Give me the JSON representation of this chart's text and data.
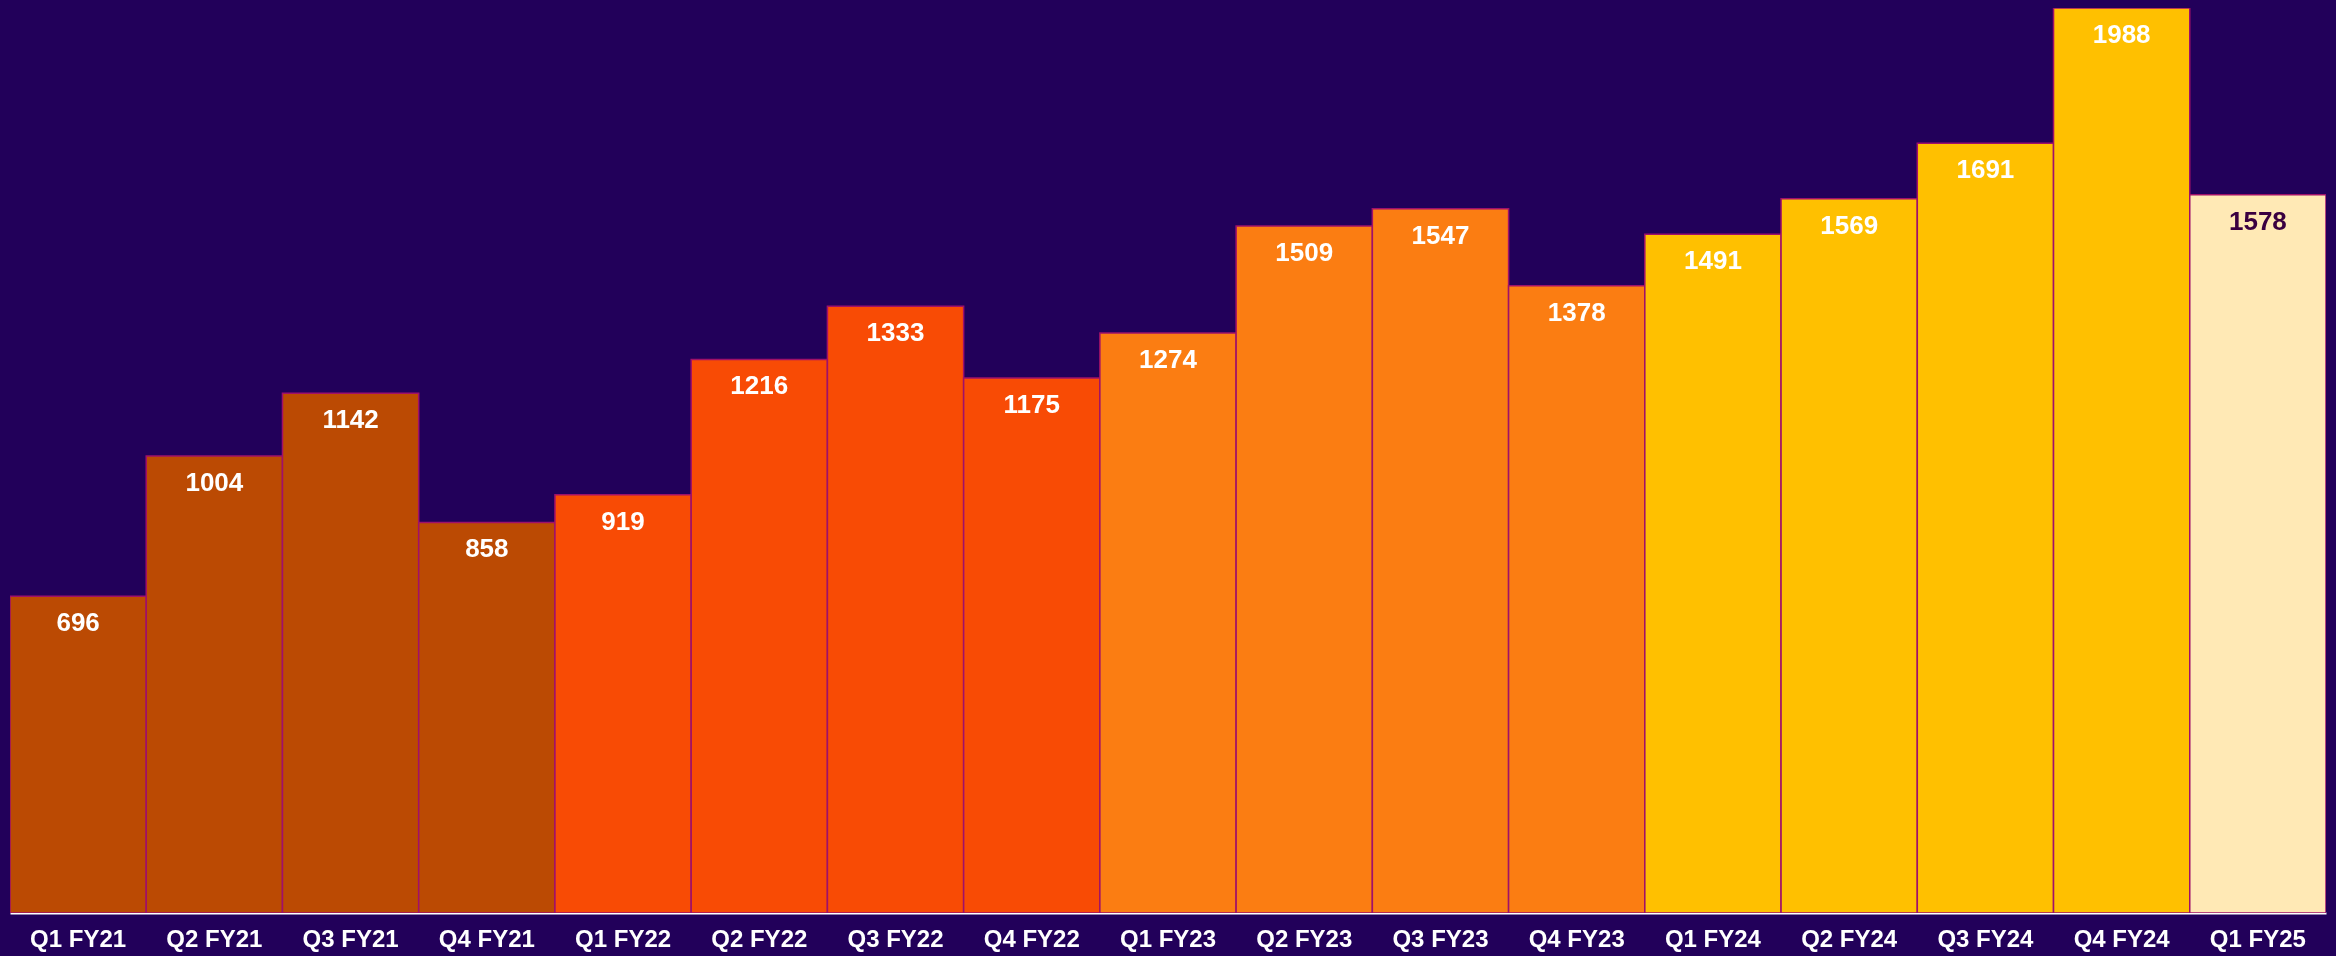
{
  "chart_data": {
    "type": "bar",
    "categories": [
      "Q1 FY21",
      "Q2 FY21",
      "Q3 FY21",
      "Q4 FY21",
      "Q1 FY22",
      "Q2 FY22",
      "Q3 FY22",
      "Q4 FY22",
      "Q1 FY23",
      "Q2 FY23",
      "Q3 FY23",
      "Q4 FY23",
      "Q1 FY24",
      "Q2 FY24",
      "Q3 FY24",
      "Q4 FY24",
      "Q1 FY25"
    ],
    "values": [
      696,
      1004,
      1142,
      858,
      919,
      1216,
      1333,
      1175,
      1274,
      1509,
      1547,
      1378,
      1491,
      1569,
      1691,
      1988,
      1578
    ],
    "colors": [
      "#bb4a03",
      "#bb4a03",
      "#bb4a03",
      "#bb4a03",
      "#f84b05",
      "#f84b05",
      "#f84b05",
      "#f84b05",
      "#fb7d12",
      "#fb7d12",
      "#fb7d12",
      "#fb7d12",
      "#ffc000",
      "#ffc000",
      "#ffc000",
      "#ffc000",
      "#ffe9b5"
    ],
    "data_labels": true,
    "grid": false
  }
}
